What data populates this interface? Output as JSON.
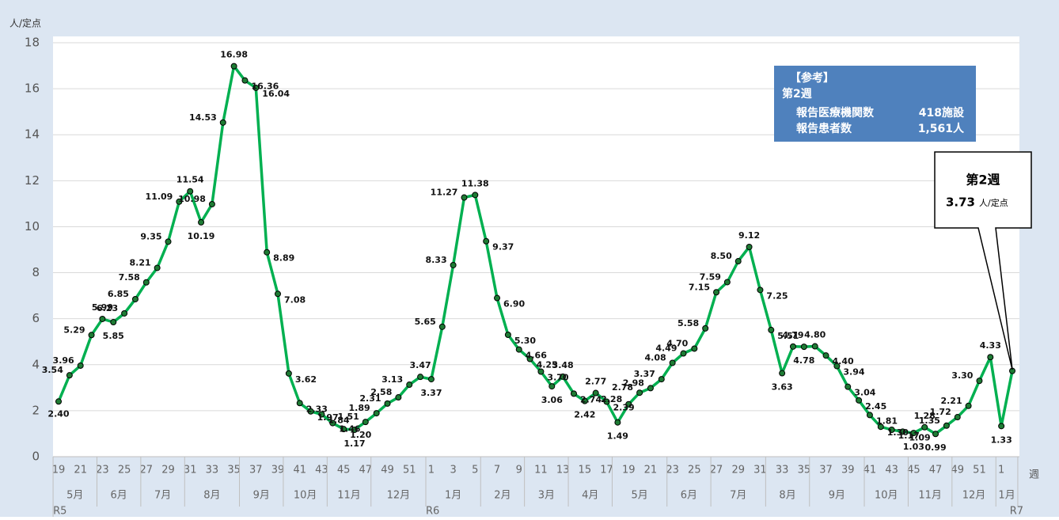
{
  "chart_data": {
    "type": "line",
    "ylabel": "人/定点",
    "xlabel": "週",
    "categories": [
      "19",
      null,
      "21",
      null,
      "23",
      null,
      "25",
      null,
      "27",
      null,
      "29",
      null,
      "31",
      null,
      "33",
      null,
      "35",
      null,
      "37",
      null,
      "39",
      null,
      "41",
      null,
      "43",
      null,
      "45",
      null,
      "47",
      null,
      "49",
      null,
      "51",
      null,
      "1",
      null,
      "3",
      null,
      "5",
      null,
      "7",
      null,
      "9",
      null,
      "11",
      null,
      "13",
      null,
      "15",
      null,
      "17",
      null,
      "19",
      null,
      "21",
      null,
      "23",
      null,
      "25",
      null,
      "27",
      null,
      "29",
      null,
      "31",
      null,
      "33",
      null,
      "35",
      null,
      "37",
      null,
      "39",
      null,
      "41",
      null,
      "43",
      null,
      "45",
      null,
      "47",
      null,
      "49",
      null,
      "51",
      null,
      "1",
      null
    ],
    "months": [
      {
        "label": "5月",
        "weeks": 4
      },
      {
        "label": "6月",
        "weeks": 4
      },
      {
        "label": "7月",
        "weeks": 4
      },
      {
        "label": "8月",
        "weeks": 5
      },
      {
        "label": "9月",
        "weeks": 4
      },
      {
        "label": "10月",
        "weeks": 4
      },
      {
        "label": "11月",
        "weeks": 4
      },
      {
        "label": "12月",
        "weeks": 5
      },
      {
        "label": "1月",
        "weeks": 5
      },
      {
        "label": "2月",
        "weeks": 4
      },
      {
        "label": "3月",
        "weeks": 4
      },
      {
        "label": "4月",
        "weeks": 4
      },
      {
        "label": "5月",
        "weeks": 5
      },
      {
        "label": "6月",
        "weeks": 4
      },
      {
        "label": "7月",
        "weeks": 5
      },
      {
        "label": "8月",
        "weeks": 4
      },
      {
        "label": "9月",
        "weeks": 5
      },
      {
        "label": "10月",
        "weeks": 4
      },
      {
        "label": "11月",
        "weeks": 4
      },
      {
        "label": "12月",
        "weeks": 4
      },
      {
        "label": "1月",
        "weeks": 2
      }
    ],
    "years": [
      {
        "label": "R5",
        "weeks": 34
      },
      {
        "label": "R6",
        "weeks": 52
      },
      {
        "label": "R7",
        "weeks": 2
      }
    ],
    "series": [
      {
        "color": "#00b050",
        "marker_color": "#1e7b34",
        "values": [
          2.4,
          3.54,
          3.96,
          5.29,
          5.99,
          5.85,
          6.23,
          6.85,
          7.58,
          8.21,
          9.35,
          11.09,
          11.54,
          10.19,
          10.98,
          14.53,
          16.98,
          16.36,
          16.04,
          8.89,
          7.08,
          3.62,
          2.33,
          1.97,
          1.84,
          1.46,
          1.2,
          1.17,
          1.51,
          1.89,
          2.31,
          2.58,
          3.13,
          3.47,
          3.37,
          5.65,
          8.33,
          11.27,
          11.38,
          9.37,
          6.9,
          5.3,
          4.66,
          4.25,
          3.7,
          3.06,
          3.48,
          2.74,
          2.42,
          2.77,
          2.39,
          1.49,
          2.28,
          2.78,
          2.98,
          3.37,
          4.08,
          4.49,
          4.7,
          5.58,
          7.15,
          7.59,
          8.5,
          9.12,
          7.25,
          5.51,
          3.63,
          4.79,
          4.78,
          4.8,
          4.4,
          3.94,
          3.04,
          2.45,
          1.81,
          1.3,
          1.17,
          1.09,
          1.03,
          1.28,
          0.99,
          1.35,
          1.72,
          2.21,
          3.3,
          4.33,
          1.33,
          3.73
        ],
        "value_labels": [
          "2.40",
          "3.54",
          "3.96",
          "5.29",
          "5.99",
          "5.85",
          "6.23",
          "6.85",
          "7.58",
          "8.21",
          "9.35",
          "11.09",
          "11.54",
          "10.19",
          "10.98",
          "14.53",
          "16.98",
          "16.36",
          "16.04",
          "8.89",
          "7.08",
          "3.62",
          "2.33",
          "1.97",
          "1.84",
          "1.46",
          "1.20",
          "1.17",
          "1.51",
          "1.89",
          "2.31",
          "2.58",
          "3.13",
          "3.47",
          "3.37",
          "5.65",
          "8.33",
          "11.27",
          "11.38",
          "9.37",
          "6.90",
          "5.30",
          "4.66",
          "4.25",
          "3.70",
          "3.06",
          "3.48",
          "2.74",
          "2.42",
          "2.77",
          "2.39",
          "1.49",
          "2.28",
          "2.78",
          "2.98",
          "3.37",
          "4.08",
          "4.49",
          "4.70",
          "5.58",
          "7.15",
          "7.59",
          "8.50",
          "9.12",
          "7.25",
          "5.51",
          "3.63",
          "4.79",
          "4.78",
          "4.80",
          "4.40",
          "3.94",
          "3.04",
          "2.45",
          "1.81",
          "1.30",
          "1.17",
          "1.09",
          "1.03",
          "1.28",
          "0.99",
          "1.35",
          "1.72",
          "2.21",
          "3.30",
          "4.33",
          "1.33",
          null
        ]
      }
    ],
    "ylim": [
      0,
      18
    ],
    "yticks": [
      0,
      2,
      4,
      6,
      8,
      10,
      12,
      14,
      16,
      18
    ],
    "grid": true,
    "info_box": {
      "title": "【参考】",
      "week": "第2週",
      "rows": [
        [
          "報告医療機関数",
          "418施設"
        ],
        [
          "報告患者数",
          "1,561人"
        ]
      ]
    },
    "callout": {
      "week": "第2週",
      "value": "3.73",
      "unit": "人/定点"
    }
  }
}
